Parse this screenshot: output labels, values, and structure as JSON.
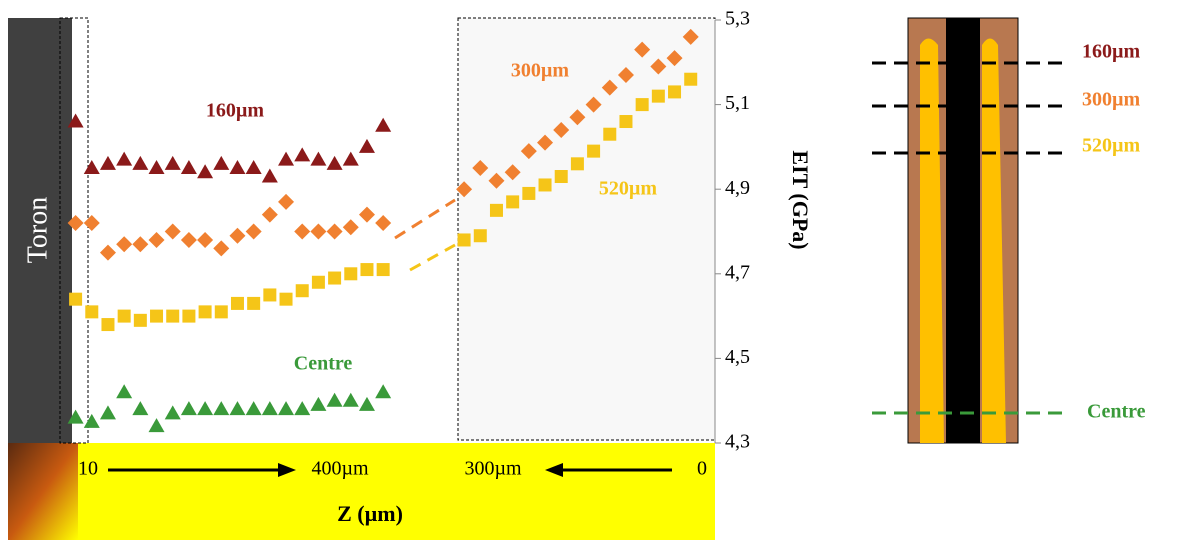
{
  "chart_data": {
    "type": "scatter",
    "y_label": "EIT (GPa)",
    "x_label": "Z (µm)",
    "side_label": "Toron",
    "x_annotations": [
      "10",
      "400µm",
      "300µm",
      "0"
    ],
    "categories": [
      null,
      null,
      null,
      null,
      null,
      null,
      null,
      null,
      null,
      null,
      null,
      null,
      null,
      null,
      null,
      null,
      null,
      null,
      null,
      null,
      null,
      null,
      null,
      null,
      null,
      null,
      null,
      null,
      null,
      null,
      null,
      null,
      null,
      null,
      null,
      null,
      null,
      null,
      null,
      null
    ],
    "ylim": [
      4.3,
      5.3
    ],
    "yticks": [
      {
        "value": 4.3,
        "label": "4,3"
      },
      {
        "value": 4.5,
        "label": "4,5"
      },
      {
        "value": 4.7,
        "label": "4,7"
      },
      {
        "value": 4.9,
        "label": "4,9"
      },
      {
        "value": 5.1,
        "label": "5,1"
      },
      {
        "value": 5.3,
        "label": "5,3"
      }
    ],
    "series": [
      {
        "name": "160µm",
        "color": "#8b1a1a",
        "marker": "triangle",
        "values": [
          5.06,
          4.95,
          4.96,
          4.97,
          4.96,
          4.95,
          4.96,
          4.95,
          4.94,
          4.96,
          4.95,
          4.95,
          4.93,
          4.97,
          4.98,
          4.97,
          4.96,
          4.97,
          5.0,
          5.05,
          null,
          null,
          null,
          null,
          null,
          null,
          null,
          null,
          null,
          null,
          null,
          null,
          null,
          null,
          null,
          null,
          null,
          null,
          null,
          null
        ]
      },
      {
        "name": "300µm",
        "color": "#f08030",
        "marker": "diamond",
        "values": [
          4.82,
          4.82,
          4.75,
          4.77,
          4.77,
          4.78,
          4.8,
          4.78,
          4.78,
          4.76,
          4.79,
          4.8,
          4.84,
          4.87,
          4.8,
          4.8,
          4.8,
          4.81,
          4.84,
          4.82,
          null,
          null,
          null,
          null,
          4.9,
          4.95,
          4.92,
          4.94,
          4.99,
          5.01,
          5.04,
          5.07,
          5.1,
          5.14,
          5.17,
          5.23,
          5.19,
          5.21,
          5.26,
          null
        ]
      },
      {
        "name": "520µm",
        "color": "#f5c518",
        "marker": "square",
        "values": [
          4.64,
          4.61,
          4.58,
          4.6,
          4.59,
          4.6,
          4.6,
          4.6,
          4.61,
          4.61,
          4.63,
          4.63,
          4.65,
          4.64,
          4.66,
          4.68,
          4.69,
          4.7,
          4.71,
          4.71,
          null,
          null,
          null,
          null,
          4.78,
          4.79,
          4.85,
          4.87,
          4.89,
          4.91,
          4.93,
          4.96,
          4.99,
          5.03,
          5.06,
          5.1,
          5.12,
          5.13,
          5.16,
          null
        ]
      },
      {
        "name": "Centre",
        "color": "#3a9a3a",
        "marker": "triangle",
        "values": [
          4.36,
          4.35,
          4.37,
          4.42,
          4.38,
          4.34,
          4.37,
          4.38,
          4.38,
          4.38,
          4.38,
          4.38,
          4.38,
          4.38,
          4.38,
          4.39,
          4.4,
          4.4,
          4.39,
          4.42,
          null,
          null,
          null,
          null,
          null,
          null,
          null,
          null,
          null,
          null,
          null,
          null,
          null,
          null,
          null,
          null,
          null,
          null,
          null,
          null
        ]
      }
    ]
  },
  "diagram": {
    "labels": [
      "160µm",
      "300µm",
      "520µm",
      "Centre"
    ]
  }
}
